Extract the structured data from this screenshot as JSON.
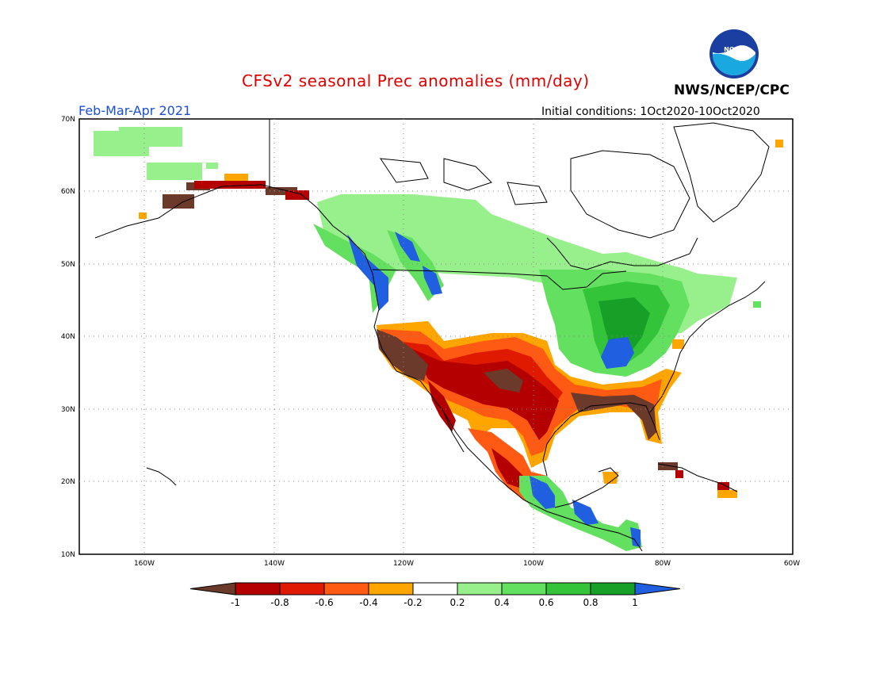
{
  "header": {
    "title": "CFSv2 seasonal Prec anomalies (mm/day)",
    "agency": "NWS/NCEP/CPC",
    "season": "Feb-Mar-Apr 2021",
    "initial_conditions": "Initial conditions: 1Oct2020-10Oct2020",
    "logo_text": "NOAA"
  },
  "map": {
    "lat_labels": [
      "70N",
      "60N",
      "50N",
      "40N",
      "30N",
      "20N",
      "10N"
    ],
    "lon_labels": [
      "160W",
      "140W",
      "120W",
      "100W",
      "80W",
      "60W"
    ]
  },
  "colorbar": {
    "labels": [
      "-1",
      "-0.8",
      "-0.6",
      "-0.4",
      "-0.2",
      "0.2",
      "0.4",
      "0.6",
      "0.8",
      "1"
    ],
    "colors": {
      "below_min": "#6b3a2a",
      "bins": [
        "#b40000",
        "#e01a00",
        "#ff5a14",
        "#ffa500",
        "#ffffff",
        "#98f08c",
        "#64e060",
        "#33c43a",
        "#16a028"
      ],
      "above_max": "#1f5fe0"
    }
  }
}
